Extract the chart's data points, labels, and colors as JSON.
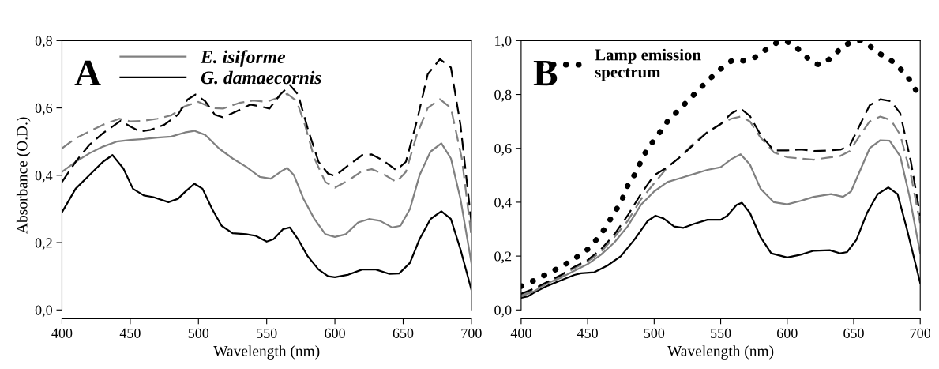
{
  "chart_data": [
    {
      "type": "line",
      "xlabel": "Wavelength (nm)",
      "ylabel": "Absorbance (O.D.)",
      "annotations": [
        "A"
      ],
      "legend": "top left",
      "grid": false,
      "xlim": [
        400,
        700
      ],
      "xticks": [
        400,
        450,
        500,
        550,
        600,
        650,
        700
      ],
      "ylim": [
        0,
        0.8
      ],
      "yticks": [
        {
          "value": 0,
          "label": "0,0"
        },
        {
          "value": 0.2,
          "label": "0,2"
        },
        {
          "value": 0.4,
          "label": "0,4"
        },
        {
          "value": 0.6,
          "label": "0,6"
        },
        {
          "value": 0.8,
          "label": "0,8"
        }
      ],
      "series": [
        {
          "name": "E. isiforme",
          "color": "#808080",
          "line_style": "solid",
          "x": [
            400,
            410,
            420,
            430,
            440,
            450,
            460,
            470,
            480,
            490,
            497,
            505,
            515,
            525,
            535,
            545,
            553,
            560,
            565,
            570,
            577,
            585,
            593,
            600,
            608,
            617,
            625,
            633,
            642,
            648,
            655,
            662,
            670,
            678,
            685,
            692,
            700
          ],
          "values": [
            0.41,
            0.44,
            0.465,
            0.485,
            0.5,
            0.505,
            0.508,
            0.512,
            0.515,
            0.527,
            0.532,
            0.52,
            0.48,
            0.45,
            0.425,
            0.395,
            0.39,
            0.41,
            0.422,
            0.4,
            0.33,
            0.27,
            0.225,
            0.217,
            0.225,
            0.26,
            0.27,
            0.265,
            0.245,
            0.25,
            0.3,
            0.4,
            0.47,
            0.495,
            0.45,
            0.33,
            0.14
          ]
        },
        {
          "name": "G. damaecornis",
          "color": "#000000",
          "line_style": "solid",
          "x": [
            400,
            410,
            420,
            430,
            437,
            445,
            452,
            460,
            467,
            478,
            485,
            490,
            497,
            503,
            510,
            517,
            525,
            535,
            542,
            550,
            555,
            562,
            567,
            573,
            580,
            588,
            595,
            600,
            610,
            620,
            630,
            640,
            647,
            655,
            662,
            670,
            678,
            685,
            692,
            700
          ],
          "values": [
            0.29,
            0.36,
            0.4,
            0.44,
            0.46,
            0.42,
            0.36,
            0.34,
            0.335,
            0.32,
            0.33,
            0.35,
            0.375,
            0.36,
            0.3,
            0.25,
            0.228,
            0.225,
            0.22,
            0.203,
            0.21,
            0.24,
            0.245,
            0.21,
            0.16,
            0.12,
            0.1,
            0.097,
            0.105,
            0.12,
            0.12,
            0.107,
            0.108,
            0.14,
            0.21,
            0.27,
            0.293,
            0.27,
            0.18,
            0.06
          ]
        },
        {
          "color": "#808080",
          "line_style": "dashed",
          "x": [
            400,
            410,
            420,
            430,
            442,
            450,
            460,
            470,
            480,
            490,
            500,
            510,
            518,
            530,
            540,
            550,
            558,
            565,
            572,
            578,
            585,
            593,
            600,
            610,
            620,
            627,
            635,
            645,
            652,
            660,
            668,
            677,
            685,
            693,
            700
          ],
          "values": [
            0.48,
            0.51,
            0.53,
            0.55,
            0.568,
            0.56,
            0.562,
            0.568,
            0.578,
            0.605,
            0.618,
            0.6,
            0.598,
            0.615,
            0.622,
            0.618,
            0.63,
            0.642,
            0.62,
            0.55,
            0.45,
            0.38,
            0.363,
            0.385,
            0.413,
            0.418,
            0.405,
            0.38,
            0.41,
            0.52,
            0.6,
            0.626,
            0.6,
            0.45,
            0.22
          ]
        },
        {
          "color": "#000000",
          "line_style": "dashed",
          "x": [
            400,
            410,
            420,
            430,
            443,
            450,
            457,
            465,
            475,
            485,
            492,
            498,
            505,
            512,
            518,
            528,
            538,
            545,
            552,
            560,
            567,
            573,
            580,
            588,
            595,
            600,
            610,
            620,
            627,
            635,
            645,
            652,
            660,
            668,
            677,
            685,
            692,
            700
          ],
          "values": [
            0.38,
            0.44,
            0.49,
            0.525,
            0.562,
            0.545,
            0.53,
            0.535,
            0.55,
            0.58,
            0.625,
            0.64,
            0.62,
            0.58,
            0.572,
            0.59,
            0.61,
            0.605,
            0.598,
            0.64,
            0.668,
            0.64,
            0.54,
            0.44,
            0.405,
            0.398,
            0.43,
            0.46,
            0.462,
            0.445,
            0.415,
            0.44,
            0.56,
            0.7,
            0.745,
            0.72,
            0.55,
            0.26
          ]
        }
      ]
    },
    {
      "type": "line",
      "xlabel": "Wavelength (nm)",
      "annotations": [
        "B"
      ],
      "legend": "top",
      "grid": false,
      "xlim": [
        400,
        700
      ],
      "xticks": [
        400,
        450,
        500,
        550,
        600,
        650,
        700
      ],
      "ylim": [
        0,
        1.0
      ],
      "yticks": [
        {
          "value": 0,
          "label": "0,0"
        },
        {
          "value": 0.2,
          "label": "0,2"
        },
        {
          "value": 0.4,
          "label": "0,4"
        },
        {
          "value": 0.6,
          "label": "0,6"
        },
        {
          "value": 0.8,
          "label": "0,8"
        },
        {
          "value": 1.0,
          "label": "1,0"
        }
      ],
      "series": [
        {
          "name": "Lamp emission\nspectrum",
          "color": "#000000",
          "line_style": "dotted",
          "x": [
            400,
            410,
            420,
            430,
            440,
            450,
            460,
            470,
            475,
            480,
            485,
            490,
            495,
            500,
            505,
            510,
            520,
            530,
            540,
            550,
            555,
            560,
            567,
            575,
            585,
            593,
            598,
            605,
            612,
            620,
            625,
            633,
            642,
            650,
            655,
            662,
            670,
            680,
            690,
            700
          ],
          "values": [
            0.088,
            0.11,
            0.135,
            0.16,
            0.19,
            0.225,
            0.28,
            0.36,
            0.4,
            0.46,
            0.5,
            0.55,
            0.6,
            0.63,
            0.665,
            0.7,
            0.75,
            0.8,
            0.85,
            0.895,
            0.915,
            0.93,
            0.925,
            0.935,
            0.97,
            0.995,
            1.0,
            0.985,
            0.95,
            0.915,
            0.91,
            0.935,
            0.98,
            0.998,
            1.0,
            0.98,
            0.95,
            0.92,
            0.87,
            0.79
          ]
        },
        {
          "color": "#000000",
          "line_style": "solid",
          "x": [
            400,
            405,
            410,
            420,
            430,
            440,
            445,
            455,
            465,
            475,
            485,
            495,
            501,
            507,
            515,
            522,
            530,
            540,
            550,
            555,
            562,
            566,
            572,
            580,
            588,
            600,
            610,
            620,
            632,
            640,
            645,
            652,
            660,
            668,
            676,
            683,
            690,
            700
          ],
          "values": [
            0.045,
            0.05,
            0.065,
            0.09,
            0.11,
            0.13,
            0.136,
            0.14,
            0.165,
            0.2,
            0.26,
            0.33,
            0.35,
            0.34,
            0.31,
            0.305,
            0.32,
            0.335,
            0.335,
            0.35,
            0.39,
            0.398,
            0.36,
            0.27,
            0.21,
            0.195,
            0.205,
            0.22,
            0.222,
            0.21,
            0.215,
            0.26,
            0.36,
            0.43,
            0.455,
            0.43,
            0.3,
            0.1
          ]
        },
        {
          "color": "#808080",
          "line_style": "solid",
          "x": [
            400,
            410,
            420,
            430,
            440,
            450,
            460,
            470,
            480,
            490,
            500,
            510,
            520,
            530,
            540,
            550,
            558,
            565,
            572,
            580,
            590,
            600,
            610,
            620,
            633,
            642,
            648,
            655,
            662,
            670,
            677,
            685,
            692,
            700
          ],
          "values": [
            0.05,
            0.07,
            0.1,
            0.12,
            0.145,
            0.17,
            0.205,
            0.25,
            0.31,
            0.39,
            0.44,
            0.475,
            0.49,
            0.505,
            0.52,
            0.53,
            0.56,
            0.578,
            0.54,
            0.45,
            0.4,
            0.392,
            0.405,
            0.42,
            0.43,
            0.42,
            0.44,
            0.52,
            0.6,
            0.63,
            0.628,
            0.57,
            0.42,
            0.21
          ]
        },
        {
          "color": "#808080",
          "line_style": "dashed",
          "x": [
            400,
            410,
            420,
            430,
            440,
            450,
            460,
            470,
            480,
            490,
            500,
            510,
            520,
            530,
            540,
            550,
            558,
            565,
            572,
            580,
            590,
            600,
            610,
            620,
            630,
            640,
            647,
            655,
            662,
            670,
            678,
            685,
            693,
            700
          ],
          "values": [
            0.055,
            0.075,
            0.1,
            0.125,
            0.155,
            0.18,
            0.215,
            0.27,
            0.33,
            0.41,
            0.47,
            0.53,
            0.57,
            0.62,
            0.66,
            0.69,
            0.71,
            0.718,
            0.7,
            0.64,
            0.585,
            0.567,
            0.562,
            0.558,
            0.565,
            0.572,
            0.59,
            0.65,
            0.7,
            0.718,
            0.705,
            0.65,
            0.5,
            0.32
          ]
        },
        {
          "color": "#000000",
          "line_style": "dashed",
          "x": [
            400,
            410,
            420,
            430,
            440,
            450,
            460,
            470,
            480,
            490,
            500,
            510,
            520,
            530,
            540,
            550,
            558,
            565,
            572,
            580,
            590,
            600,
            610,
            620,
            630,
            640,
            647,
            655,
            662,
            670,
            678,
            685,
            693,
            700
          ],
          "values": [
            0.06,
            0.08,
            0.105,
            0.13,
            0.16,
            0.185,
            0.225,
            0.28,
            0.35,
            0.43,
            0.5,
            0.53,
            0.57,
            0.615,
            0.66,
            0.69,
            0.73,
            0.748,
            0.72,
            0.65,
            0.592,
            0.592,
            0.596,
            0.59,
            0.592,
            0.595,
            0.61,
            0.69,
            0.76,
            0.782,
            0.775,
            0.73,
            0.55,
            0.35
          ]
        }
      ]
    }
  ]
}
